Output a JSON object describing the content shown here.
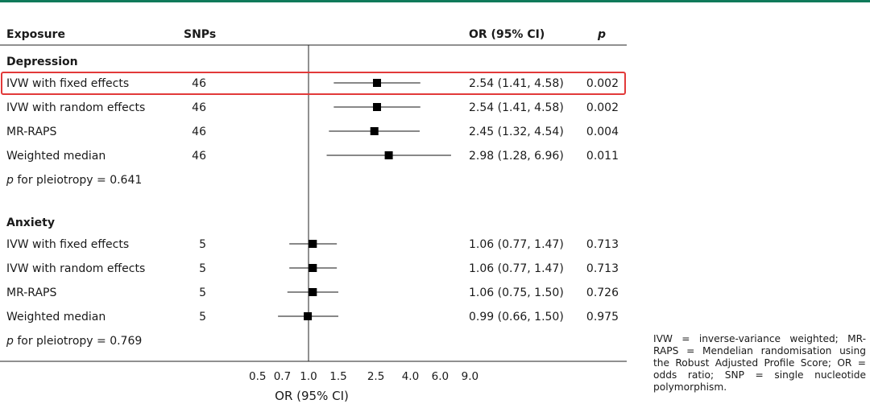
{
  "header": {
    "exposure": "Exposure",
    "snps": "SNPs",
    "or_ci": "OR (95% CI)",
    "p": "p"
  },
  "footnote": "IVW = inverse-variance weighted; MR-RAPS = Mendelian randomisation using the Robust Adjusted Profile Score; OR = odds ratio; SNP = single nucleotide polymorphism.",
  "colors": {
    "top_rule": "#0f7a5a",
    "highlight": "#e23a3a",
    "marker": "#000000"
  },
  "chart_data": {
    "type": "forest",
    "xlabel": "OR (95% CI)",
    "xscale": "log",
    "null_line": 1.0,
    "xticks": [
      0.5,
      0.7,
      1.0,
      1.5,
      2.5,
      4.0,
      6.0,
      9.0
    ],
    "xtick_labels": [
      "0.5",
      "0.7",
      "1.0",
      "1.5",
      "2.5",
      "4.0",
      "6.0",
      "9.0"
    ],
    "xlim": [
      0.5,
      9.0
    ],
    "groups": [
      {
        "name": "Depression",
        "rows": [
          {
            "method": "IVW with fixed effects",
            "snps": "46",
            "or": 2.54,
            "lo": 1.41,
            "hi": 4.58,
            "or_text": "2.54 (1.41, 4.58)",
            "p": "0.002",
            "highlighted": true
          },
          {
            "method": "IVW with random effects",
            "snps": "46",
            "or": 2.54,
            "lo": 1.41,
            "hi": 4.58,
            "or_text": "2.54 (1.41, 4.58)",
            "p": "0.002"
          },
          {
            "method": "MR-RAPS",
            "snps": "46",
            "or": 2.45,
            "lo": 1.32,
            "hi": 4.54,
            "or_text": "2.45 (1.32, 4.54)",
            "p": "0.004"
          },
          {
            "method": "Weighted median",
            "snps": "46",
            "or": 2.98,
            "lo": 1.28,
            "hi": 6.96,
            "or_text": "2.98 (1.28, 6.96)",
            "p": "0.011"
          }
        ],
        "pleiotropy_prefix": "p",
        "pleiotropy_text": " for pleiotropy = 0.641"
      },
      {
        "name": "Anxiety",
        "rows": [
          {
            "method": "IVW with fixed effects",
            "snps": "5",
            "or": 1.06,
            "lo": 0.77,
            "hi": 1.47,
            "or_text": "1.06 (0.77, 1.47)",
            "p": "0.713"
          },
          {
            "method": "IVW with random effects",
            "snps": "5",
            "or": 1.06,
            "lo": 0.77,
            "hi": 1.47,
            "or_text": "1.06 (0.77, 1.47)",
            "p": "0.713"
          },
          {
            "method": "MR-RAPS",
            "snps": "5",
            "or": 1.06,
            "lo": 0.75,
            "hi": 1.5,
            "or_text": "1.06 (0.75, 1.50)",
            "p": "0.726"
          },
          {
            "method": "Weighted median",
            "snps": "5",
            "or": 0.99,
            "lo": 0.66,
            "hi": 1.5,
            "or_text": "0.99 (0.66, 1.50)",
            "p": "0.975"
          }
        ],
        "pleiotropy_prefix": "p",
        "pleiotropy_text": " for pleiotropy = 0.769"
      }
    ]
  }
}
